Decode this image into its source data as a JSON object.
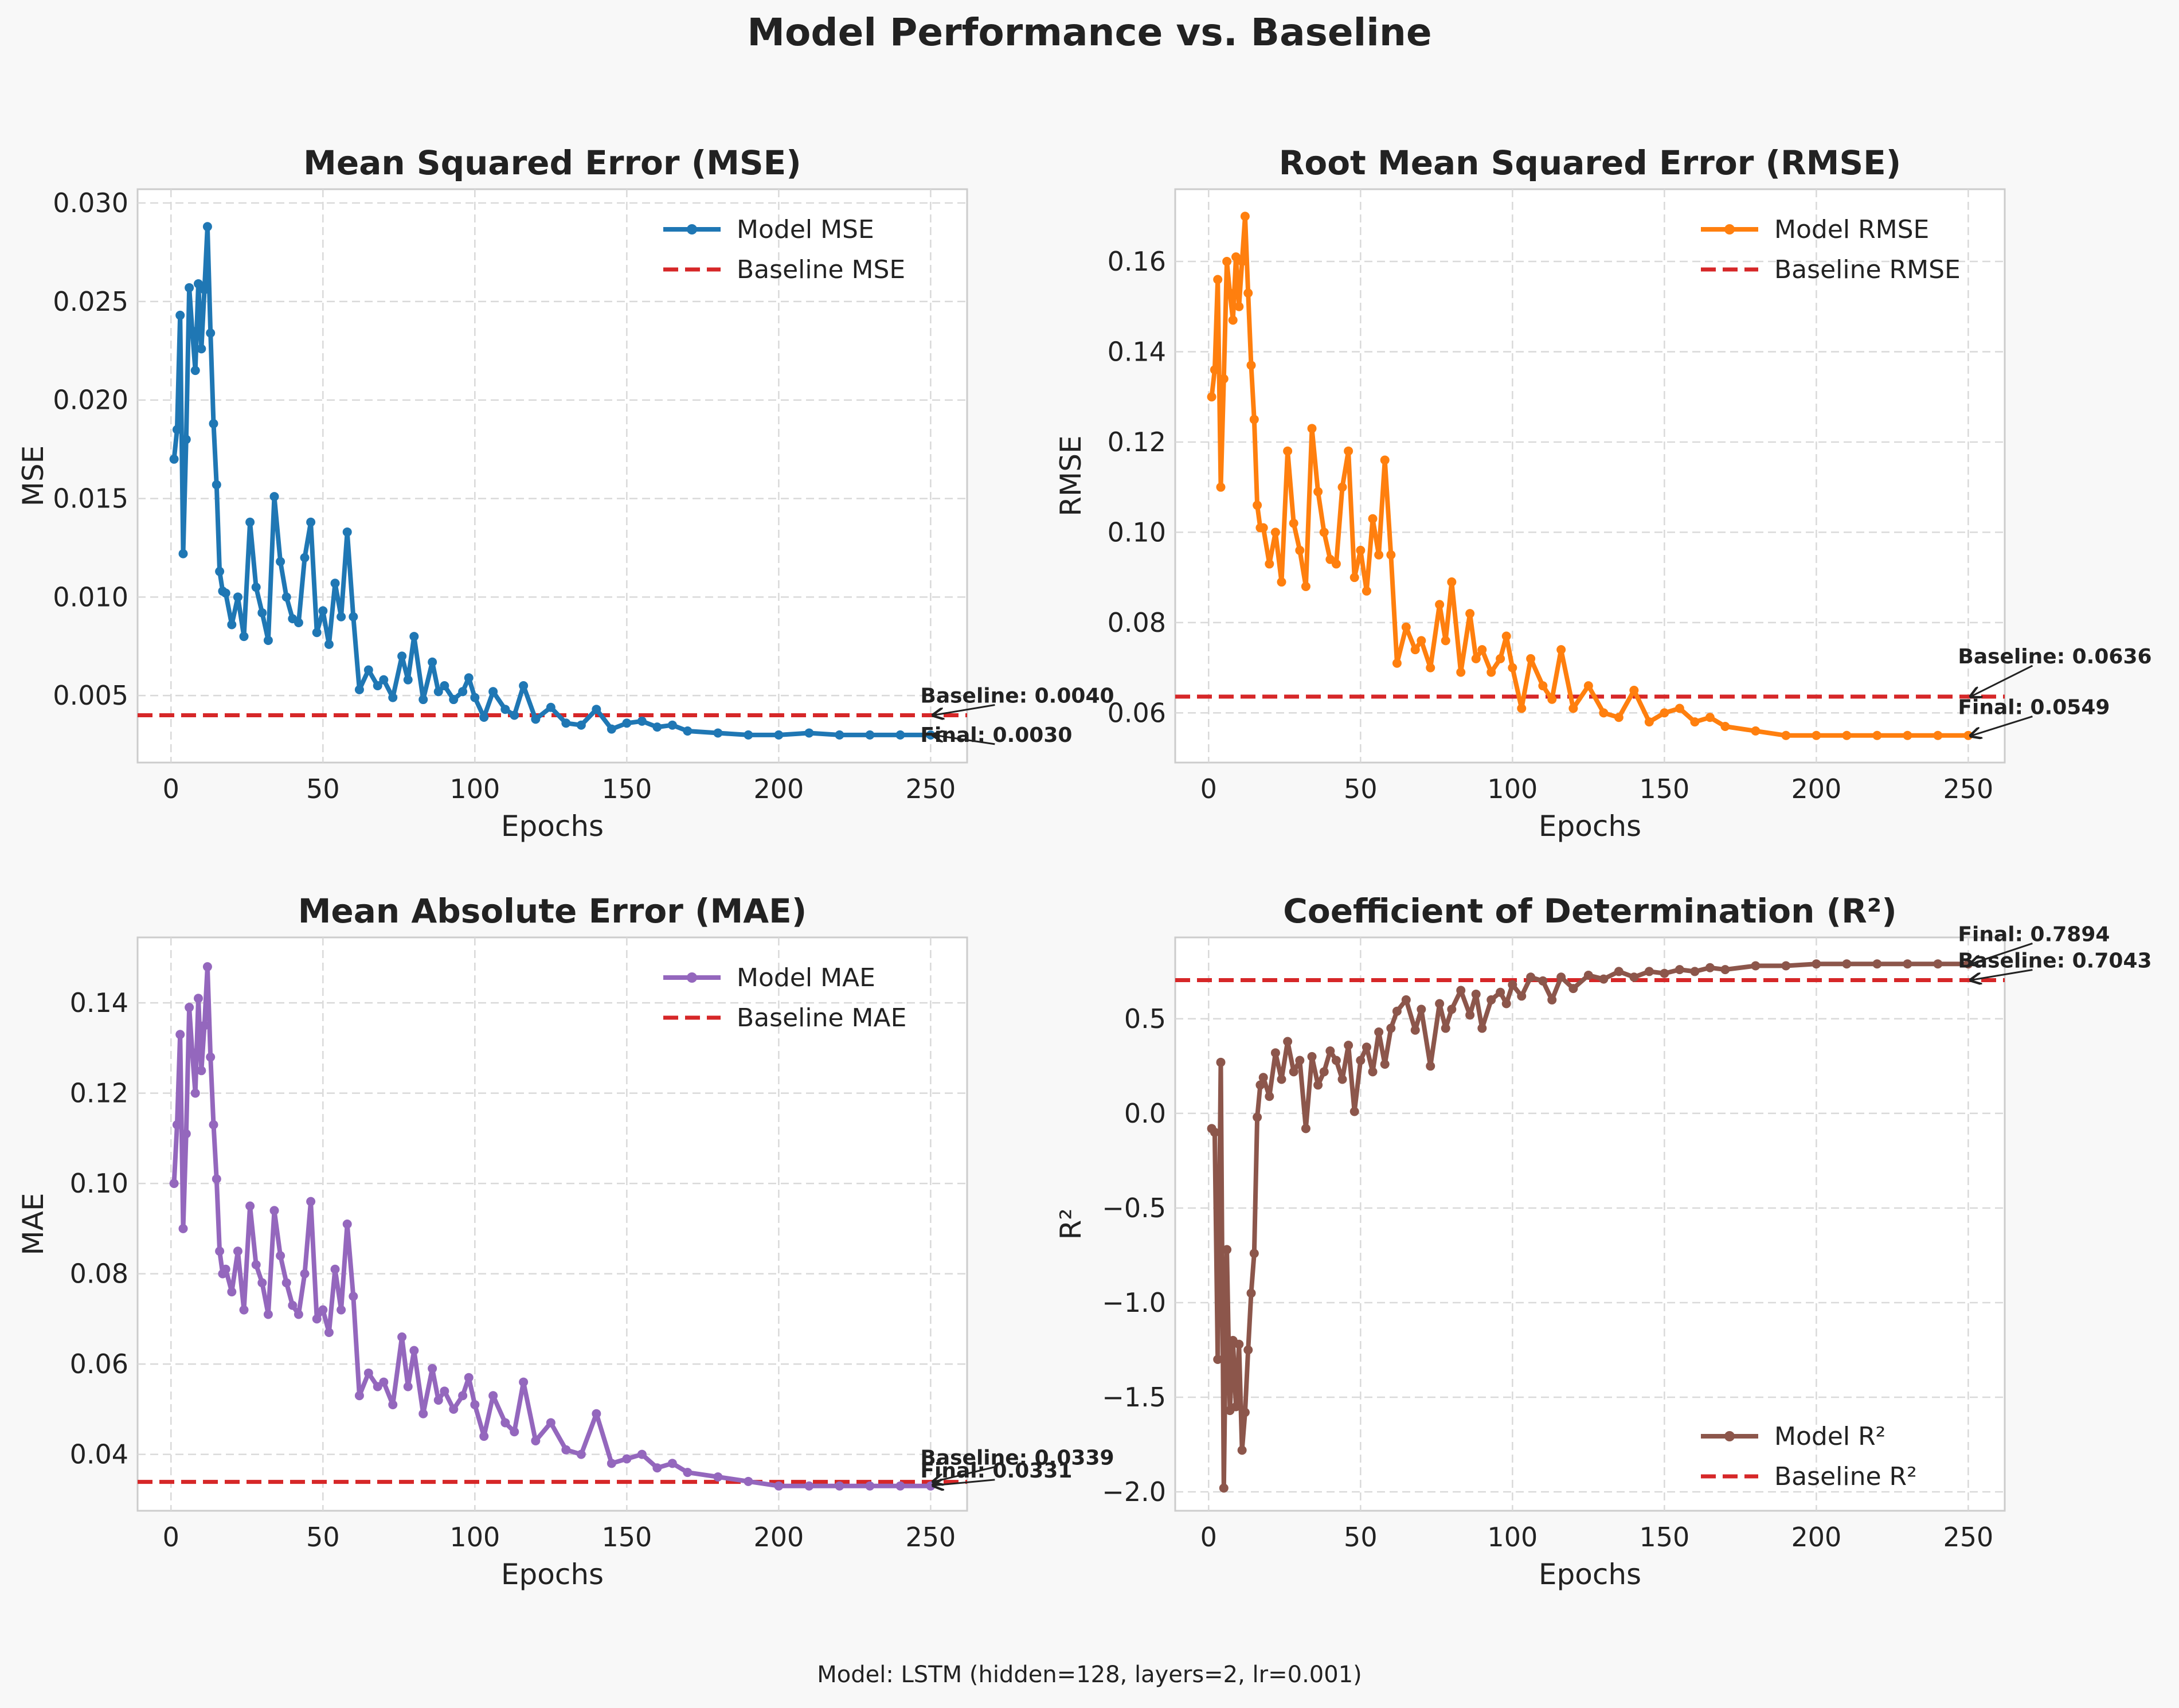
{
  "figure": {
    "title": "Model Performance vs. Baseline",
    "footnote": "Model: LSTM (hidden=128, layers=2, lr=0.001)"
  },
  "chart_data": [
    {
      "type": "line",
      "title": "Mean Squared Error (MSE)",
      "xlabel": "Epochs",
      "ylabel": "MSE",
      "xlim": [
        -11,
        262
      ],
      "ylim": [
        0.0016,
        0.0307
      ],
      "xticks": [
        0,
        50,
        100,
        150,
        200,
        250
      ],
      "xtick_labels": [
        "0",
        "50",
        "100",
        "150",
        "200",
        "250"
      ],
      "yticks": [
        0.005,
        0.01,
        0.015,
        0.02,
        0.025,
        0.03
      ],
      "ytick_labels": [
        "0.005",
        "0.010",
        "0.015",
        "0.020",
        "0.025",
        "0.030"
      ],
      "grid": true,
      "legend_position": "top-right",
      "series": [
        {
          "name": "Model MSE",
          "style": "line-markers",
          "color": "#1f77b4",
          "x": [
            1,
            2,
            3,
            4,
            5,
            6,
            7,
            8,
            9,
            10,
            11,
            12,
            13,
            14,
            15,
            16,
            17,
            18,
            20,
            22,
            24,
            26,
            28,
            30,
            32,
            34,
            36,
            38,
            40,
            42,
            44,
            46,
            48,
            50,
            52,
            54,
            56,
            58,
            60,
            62,
            65,
            68,
            70,
            73,
            76,
            78,
            80,
            83,
            86,
            88,
            90,
            93,
            96,
            98,
            100,
            103,
            106,
            110,
            113,
            116,
            120,
            125,
            130,
            135,
            140,
            145,
            150,
            155,
            160,
            165,
            170,
            180,
            190,
            200,
            210,
            220,
            230,
            240,
            250
          ],
          "y": [
            0.017,
            0.0185,
            0.0243,
            0.0122,
            0.018,
            0.0257,
            0.0235,
            0.0215,
            0.0259,
            0.0226,
            0.0256,
            0.0288,
            0.0234,
            0.0188,
            0.0157,
            0.0113,
            0.0103,
            0.0102,
            0.0086,
            0.01,
            0.008,
            0.0138,
            0.0105,
            0.0092,
            0.0078,
            0.0151,
            0.0118,
            0.01,
            0.0089,
            0.0087,
            0.012,
            0.0138,
            0.0082,
            0.0093,
            0.0076,
            0.0107,
            0.009,
            0.0133,
            0.009,
            0.0053,
            0.0063,
            0.0055,
            0.0058,
            0.0049,
            0.007,
            0.0058,
            0.008,
            0.0048,
            0.0067,
            0.0052,
            0.0055,
            0.0048,
            0.0052,
            0.0059,
            0.0049,
            0.0039,
            0.0052,
            0.0043,
            0.004,
            0.0055,
            0.0038,
            0.0044,
            0.0036,
            0.0035,
            0.0043,
            0.0033,
            0.0036,
            0.0037,
            0.0034,
            0.0035,
            0.0032,
            0.0031,
            0.003,
            0.003,
            0.0031,
            0.003,
            0.003,
            0.003,
            0.003
          ]
        },
        {
          "name": "Baseline MSE",
          "style": "dashed",
          "color": "#d62728",
          "value": 0.004
        }
      ],
      "annotations": [
        {
          "text": "Baseline: 0.0040",
          "x": 250,
          "y": 0.004
        },
        {
          "text": "Final: 0.0030",
          "x": 250,
          "y": 0.003
        }
      ]
    },
    {
      "type": "line",
      "title": "Root Mean Squared Error (RMSE)",
      "xlabel": "Epochs",
      "ylabel": "RMSE",
      "xlim": [
        -11,
        262
      ],
      "ylim": [
        0.049,
        0.176
      ],
      "xticks": [
        0,
        50,
        100,
        150,
        200,
        250
      ],
      "xtick_labels": [
        "0",
        "50",
        "100",
        "150",
        "200",
        "250"
      ],
      "yticks": [
        0.06,
        0.08,
        0.1,
        0.12,
        0.14,
        0.16
      ],
      "ytick_labels": [
        "0.06",
        "0.08",
        "0.10",
        "0.12",
        "0.14",
        "0.16"
      ],
      "grid": true,
      "legend_position": "top-right",
      "series": [
        {
          "name": "Model RMSE",
          "style": "line-markers",
          "color": "#ff7f0e",
          "x": [
            1,
            2,
            3,
            4,
            5,
            6,
            7,
            8,
            9,
            10,
            11,
            12,
            13,
            14,
            15,
            16,
            17,
            18,
            20,
            22,
            24,
            26,
            28,
            30,
            32,
            34,
            36,
            38,
            40,
            42,
            44,
            46,
            48,
            50,
            52,
            54,
            56,
            58,
            60,
            62,
            65,
            68,
            70,
            73,
            76,
            78,
            80,
            83,
            86,
            88,
            90,
            93,
            96,
            98,
            100,
            103,
            106,
            110,
            113,
            116,
            120,
            125,
            130,
            135,
            140,
            145,
            150,
            155,
            160,
            165,
            170,
            180,
            190,
            200,
            210,
            220,
            230,
            240,
            250
          ],
          "y": [
            0.13,
            0.136,
            0.156,
            0.11,
            0.134,
            0.16,
            0.153,
            0.147,
            0.161,
            0.15,
            0.16,
            0.17,
            0.153,
            0.137,
            0.125,
            0.106,
            0.101,
            0.101,
            0.093,
            0.1,
            0.089,
            0.118,
            0.102,
            0.096,
            0.088,
            0.123,
            0.109,
            0.1,
            0.094,
            0.093,
            0.11,
            0.118,
            0.09,
            0.096,
            0.087,
            0.103,
            0.095,
            0.116,
            0.095,
            0.071,
            0.079,
            0.074,
            0.076,
            0.07,
            0.084,
            0.076,
            0.089,
            0.069,
            0.082,
            0.072,
            0.074,
            0.069,
            0.072,
            0.077,
            0.07,
            0.061,
            0.072,
            0.066,
            0.063,
            0.074,
            0.061,
            0.066,
            0.06,
            0.059,
            0.065,
            0.058,
            0.06,
            0.061,
            0.058,
            0.059,
            0.057,
            0.056,
            0.055,
            0.055,
            0.055,
            0.055,
            0.055,
            0.055,
            0.055
          ]
        },
        {
          "name": "Baseline RMSE",
          "style": "dashed",
          "color": "#d62728",
          "value": 0.0636
        }
      ],
      "annotations": [
        {
          "text": "Baseline: 0.0636",
          "x": 250,
          "y": 0.0636
        },
        {
          "text": "Final: 0.0549",
          "x": 250,
          "y": 0.0549
        }
      ]
    },
    {
      "type": "line",
      "title": "Mean Absolute Error (MAE)",
      "xlabel": "Epochs",
      "ylabel": "MAE",
      "xlim": [
        -11,
        262
      ],
      "ylim": [
        0.0275,
        0.1545
      ],
      "xticks": [
        0,
        50,
        100,
        150,
        200,
        250
      ],
      "xtick_labels": [
        "0",
        "50",
        "100",
        "150",
        "200",
        "250"
      ],
      "yticks": [
        0.04,
        0.06,
        0.08,
        0.1,
        0.12,
        0.14
      ],
      "ytick_labels": [
        "0.04",
        "0.06",
        "0.08",
        "0.10",
        "0.12",
        "0.14"
      ],
      "grid": true,
      "legend_position": "top-right",
      "series": [
        {
          "name": "Model MAE",
          "style": "line-markers",
          "color": "#9467bd",
          "x": [
            1,
            2,
            3,
            4,
            5,
            6,
            7,
            8,
            9,
            10,
            11,
            12,
            13,
            14,
            15,
            16,
            17,
            18,
            20,
            22,
            24,
            26,
            28,
            30,
            32,
            34,
            36,
            38,
            40,
            42,
            44,
            46,
            48,
            50,
            52,
            54,
            56,
            58,
            60,
            62,
            65,
            68,
            70,
            73,
            76,
            78,
            80,
            83,
            86,
            88,
            90,
            93,
            96,
            98,
            100,
            103,
            106,
            110,
            113,
            116,
            120,
            125,
            130,
            135,
            140,
            145,
            150,
            155,
            160,
            165,
            170,
            180,
            190,
            200,
            210,
            220,
            230,
            240,
            250
          ],
          "y": [
            0.1,
            0.113,
            0.133,
            0.09,
            0.111,
            0.139,
            0.129,
            0.12,
            0.141,
            0.125,
            0.135,
            0.148,
            0.128,
            0.113,
            0.101,
            0.085,
            0.08,
            0.081,
            0.076,
            0.085,
            0.072,
            0.095,
            0.082,
            0.078,
            0.071,
            0.094,
            0.084,
            0.078,
            0.073,
            0.071,
            0.08,
            0.096,
            0.07,
            0.072,
            0.067,
            0.081,
            0.072,
            0.091,
            0.075,
            0.053,
            0.058,
            0.055,
            0.056,
            0.051,
            0.066,
            0.055,
            0.063,
            0.049,
            0.059,
            0.052,
            0.054,
            0.05,
            0.053,
            0.057,
            0.051,
            0.044,
            0.053,
            0.047,
            0.045,
            0.056,
            0.043,
            0.047,
            0.041,
            0.04,
            0.049,
            0.038,
            0.039,
            0.04,
            0.037,
            0.038,
            0.036,
            0.035,
            0.034,
            0.033,
            0.033,
            0.033,
            0.033,
            0.033,
            0.033
          ]
        },
        {
          "name": "Baseline MAE",
          "style": "dashed",
          "color": "#d62728",
          "value": 0.0339
        }
      ],
      "annotations": [
        {
          "text": "Baseline: 0.0339",
          "x": 250,
          "y": 0.0339
        },
        {
          "text": "Final: 0.0331",
          "x": 250,
          "y": 0.0331
        }
      ]
    },
    {
      "type": "line",
      "title": "Coefficient of Determination (R²)",
      "xlabel": "Epochs",
      "ylabel": "R²",
      "xlim": [
        -11,
        262
      ],
      "ylim": [
        -2.1,
        0.93
      ],
      "xticks": [
        0,
        50,
        100,
        150,
        200,
        250
      ],
      "xtick_labels": [
        "0",
        "50",
        "100",
        "150",
        "200",
        "250"
      ],
      "yticks": [
        -2.0,
        -1.5,
        -1.0,
        -0.5,
        0.0,
        0.5
      ],
      "ytick_labels": [
        "−2.0",
        "−1.5",
        "−1.0",
        "−0.5",
        "0.0",
        "0.5"
      ],
      "grid": true,
      "legend_position": "bottom-right",
      "series": [
        {
          "name": "Model R²",
          "style": "line-markers",
          "color": "#8c564b",
          "x": [
            1,
            2,
            3,
            4,
            5,
            6,
            7,
            8,
            9,
            10,
            11,
            12,
            13,
            14,
            15,
            16,
            17,
            18,
            20,
            22,
            24,
            26,
            28,
            30,
            32,
            34,
            36,
            38,
            40,
            42,
            44,
            46,
            48,
            50,
            52,
            54,
            56,
            58,
            60,
            62,
            65,
            68,
            70,
            73,
            76,
            78,
            80,
            83,
            86,
            88,
            90,
            93,
            96,
            98,
            100,
            103,
            106,
            110,
            113,
            116,
            120,
            125,
            130,
            135,
            140,
            145,
            150,
            155,
            160,
            165,
            170,
            180,
            190,
            200,
            210,
            220,
            230,
            240,
            250
          ],
          "y": [
            -0.08,
            -0.1,
            -1.3,
            0.27,
            -1.98,
            -0.72,
            -1.57,
            -1.2,
            -1.55,
            -1.22,
            -1.78,
            -1.58,
            -1.25,
            -0.95,
            -0.74,
            -0.02,
            0.15,
            0.19,
            0.09,
            0.32,
            0.18,
            0.38,
            0.22,
            0.28,
            -0.08,
            0.3,
            0.15,
            0.22,
            0.33,
            0.28,
            0.18,
            0.36,
            0.01,
            0.28,
            0.35,
            0.22,
            0.43,
            0.26,
            0.45,
            0.54,
            0.6,
            0.44,
            0.55,
            0.25,
            0.58,
            0.45,
            0.55,
            0.65,
            0.52,
            0.63,
            0.45,
            0.6,
            0.64,
            0.58,
            0.68,
            0.62,
            0.72,
            0.7,
            0.6,
            0.72,
            0.66,
            0.73,
            0.71,
            0.75,
            0.72,
            0.75,
            0.74,
            0.76,
            0.75,
            0.77,
            0.76,
            0.78,
            0.78,
            0.79,
            0.79,
            0.79,
            0.79,
            0.79,
            0.79
          ]
        },
        {
          "name": "Baseline R²",
          "style": "dashed",
          "color": "#d62728",
          "value": 0.7043
        }
      ],
      "annotations": [
        {
          "text": "Final: 0.7894",
          "x": 250,
          "y": 0.7894
        },
        {
          "text": "Baseline: 0.7043",
          "x": 250,
          "y": 0.7043
        }
      ]
    }
  ]
}
